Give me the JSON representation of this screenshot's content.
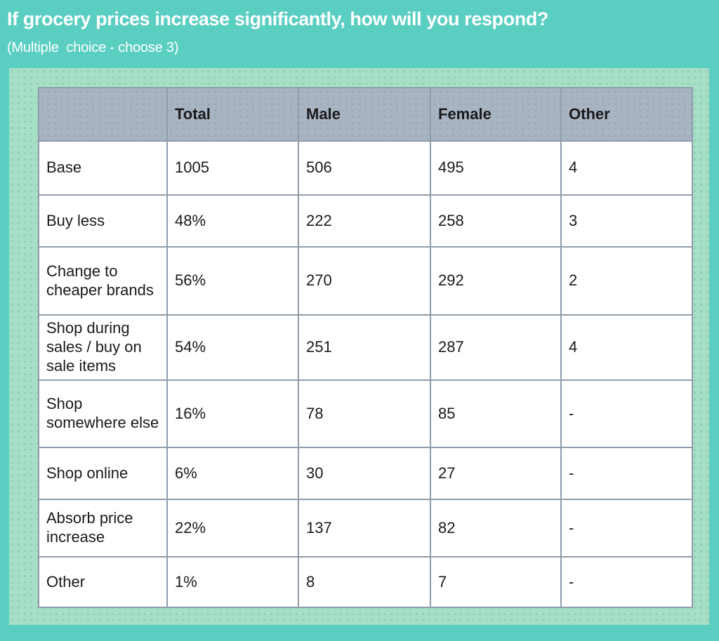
{
  "header": {
    "title": "If grocery prices increase significantly, how will you respond?",
    "subtitle": "(Multiple  choice - choose 3)"
  },
  "chart_data": {
    "type": "table",
    "title": "If grocery prices increase significantly, how will you respond?",
    "subtitle": "(Multiple  choice - choose 3)",
    "columns": [
      "",
      "Total",
      "Male",
      "Female",
      "Other"
    ],
    "rows": [
      [
        "Base",
        "1005",
        "506",
        "495",
        "4"
      ],
      [
        "Buy less",
        "48%",
        "222",
        "258",
        "3"
      ],
      [
        "Change to cheaper brands",
        "56%",
        "270",
        "292",
        "2"
      ],
      [
        "Shop during sales / buy on sale items",
        "54%",
        "251",
        "287",
        "4"
      ],
      [
        "Shop somewhere else",
        "16%",
        "78",
        "85",
        "-"
      ],
      [
        "Shop online",
        "6%",
        "30",
        "27",
        "-"
      ],
      [
        "Absorb price increase",
        "22%",
        "137",
        "82",
        "-"
      ],
      [
        "Other",
        "1%",
        "8",
        "7",
        "-"
      ]
    ]
  },
  "colors": {
    "background_teal": "#5bcec2",
    "panel_mint": "#a6dfc5",
    "table_header_bg": "#a9b4c2",
    "table_border": "#8e9cab",
    "cell_bg": "#ffffff",
    "text": "#1a1a1a",
    "title_text": "#ffffff"
  }
}
